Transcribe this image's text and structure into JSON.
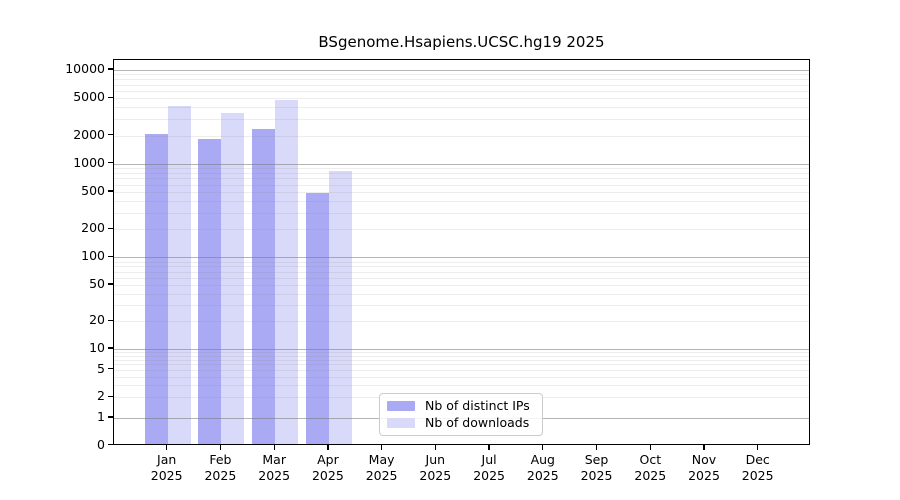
{
  "title": "BSgenome.Hsapiens.UCSC.hg19 2025",
  "chart_data": {
    "type": "bar",
    "title": "BSgenome.Hsapiens.UCSC.hg19 2025",
    "categories": [
      "Jan",
      "Feb",
      "Mar",
      "Apr",
      "May",
      "Jun",
      "Jul",
      "Aug",
      "Sep",
      "Oct",
      "Nov",
      "Dec"
    ],
    "year": "2025",
    "series": [
      {
        "name": "Nb of distinct IPs",
        "color": "#a9a9f4",
        "values": [
          2030,
          1800,
          2300,
          470,
          0,
          0,
          0,
          0,
          0,
          0,
          0,
          0
        ]
      },
      {
        "name": "Nb of downloads",
        "color": "#d9d9f9",
        "values": [
          4000,
          3400,
          4650,
          810,
          0,
          0,
          0,
          0,
          0,
          0,
          0,
          0
        ]
      }
    ],
    "xlabel": "",
    "ylabel": "",
    "y_axis": {
      "scale": "symlog",
      "tick_values": [
        0,
        1,
        2,
        5,
        10,
        20,
        50,
        100,
        200,
        500,
        1000,
        2000,
        5000,
        10000
      ],
      "tick_labels": [
        "0",
        "1",
        "2",
        "5",
        "10",
        "20",
        "50",
        "100",
        "200",
        "500",
        "1000",
        "2000",
        "5000",
        "10000"
      ],
      "ylim": [
        0,
        13000
      ],
      "major_grid_values": [
        1,
        10,
        100,
        1000,
        10000
      ]
    },
    "grid": "on",
    "legend": {
      "position": "lower-center-inside",
      "entries": [
        "Nb of distinct IPs",
        "Nb of downloads"
      ]
    }
  },
  "colors": {
    "background": "#ffffff",
    "axis": "#000000",
    "bar_distinct_ips": "#a9a9f4",
    "bar_downloads": "#d9d9f9",
    "major_grid": "#b0b0b0",
    "minor_grid": "#e8e8e8",
    "legend_border": "#cccccc",
    "text": "#000000"
  }
}
